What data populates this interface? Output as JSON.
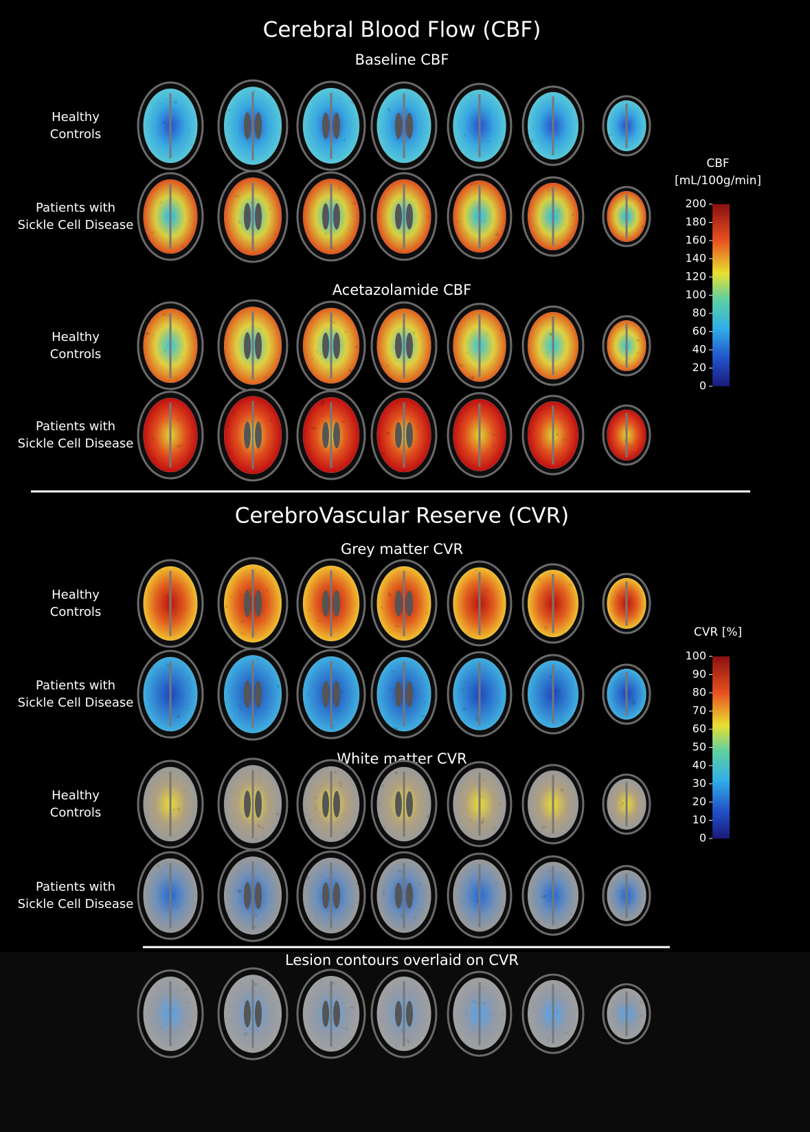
{
  "cbf": {
    "title": "Cerebral Blood Flow (CBF)",
    "panels": [
      {
        "title": "Baseline  CBF",
        "rows": [
          [
            "Healthy",
            "Controls"
          ],
          [
            "Patients with",
            "Sickle Cell Disease"
          ]
        ]
      },
      {
        "title": "Acetazolamide  CBF",
        "rows": [
          [
            "Healthy",
            "Controls"
          ],
          [
            "Patients with",
            "Sickle Cell Disease"
          ]
        ]
      }
    ],
    "colorbar": {
      "label": [
        "CBF",
        "[mL/100g/min]"
      ],
      "lim": [
        0,
        200
      ],
      "ticks": [
        0,
        20,
        40,
        60,
        80,
        100,
        120,
        140,
        160,
        180,
        200
      ]
    }
  },
  "cvr": {
    "title": "CerebroVascular Reserve (CVR)",
    "panels": [
      {
        "title": "Grey matter CVR",
        "rows": [
          [
            "Healthy",
            "Controls"
          ],
          [
            "Patients with",
            "Sickle Cell Disease"
          ]
        ]
      },
      {
        "title": "White matter CVR",
        "rows": [
          [
            "Healthy",
            "Controls"
          ],
          [
            "Patients with",
            "Sickle Cell Disease"
          ]
        ]
      }
    ],
    "colorbar": {
      "label": [
        "CVR [%]"
      ],
      "lim": [
        0,
        100
      ],
      "ticks": [
        0,
        10,
        20,
        30,
        40,
        50,
        60,
        70,
        80,
        90,
        100
      ]
    }
  },
  "lesion": {
    "title": "Lesion contours overlaid on CVR"
  }
}
